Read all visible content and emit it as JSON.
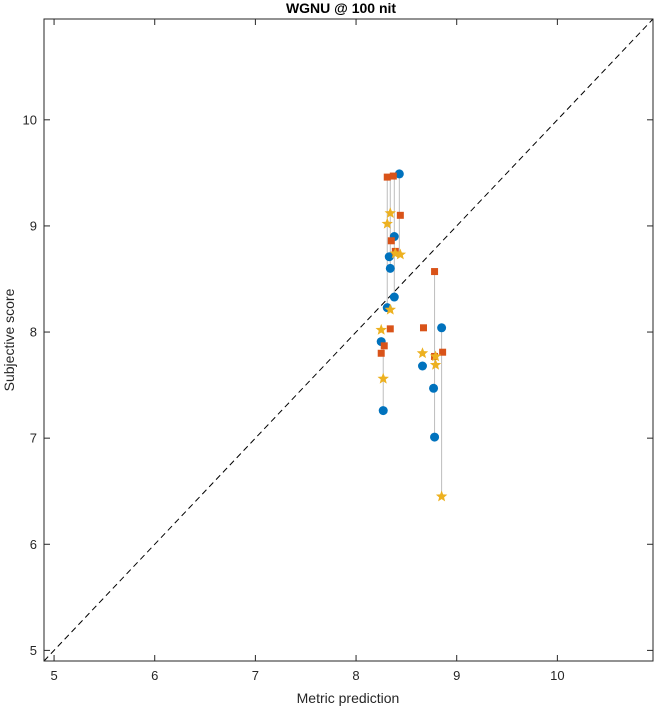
{
  "chart_data": {
    "type": "scatter",
    "title": "WGNU @ 100 nit",
    "xlabel": "Metric prediction",
    "ylabel": "Subjective score",
    "xlim": [
      4.9,
      10.95
    ],
    "ylim": [
      4.9,
      10.95
    ],
    "xticks": [
      5,
      6,
      7,
      8,
      9,
      10
    ],
    "yticks": [
      5,
      6,
      7,
      8,
      9,
      10
    ],
    "grid": false,
    "legend": "none",
    "reference_line": {
      "style": "dashed",
      "color": "#000000",
      "from": [
        4.9,
        4.9
      ],
      "to": [
        10.95,
        10.95
      ]
    },
    "colors": {
      "blue": "#0072BD",
      "orange": "#D95319",
      "yellow": "#EDB120",
      "stem": "#BDBDBD",
      "axis": "#262626"
    },
    "stems": [
      {
        "x": 8.27,
        "y0": 7.26,
        "y1": 7.87
      },
      {
        "x": 8.31,
        "y0": 8.23,
        "y1": 9.46
      },
      {
        "x": 8.34,
        "y0": 8.6,
        "y1": 9.46
      },
      {
        "x": 8.38,
        "y0": 8.33,
        "y1": 9.47
      },
      {
        "x": 8.43,
        "y0": 8.73,
        "y1": 9.49
      },
      {
        "x": 8.78,
        "y0": 7.01,
        "y1": 8.57
      },
      {
        "x": 8.85,
        "y0": 6.45,
        "y1": 8.04
      }
    ],
    "series": [
      {
        "marker": "circle",
        "color": "#0072BD",
        "points": [
          [
            8.27,
            7.26
          ],
          [
            8.25,
            7.91
          ],
          [
            8.31,
            8.23
          ],
          [
            8.38,
            8.33
          ],
          [
            8.34,
            8.6
          ],
          [
            8.33,
            8.71
          ],
          [
            8.38,
            8.9
          ],
          [
            8.43,
            9.49
          ],
          [
            8.66,
            7.68
          ],
          [
            8.77,
            7.47
          ],
          [
            8.78,
            7.01
          ],
          [
            8.85,
            8.04
          ]
        ]
      },
      {
        "marker": "square",
        "color": "#D95319",
        "points": [
          [
            8.25,
            7.8
          ],
          [
            8.28,
            7.87
          ],
          [
            8.34,
            8.03
          ],
          [
            8.35,
            8.86
          ],
          [
            8.39,
            8.76
          ],
          [
            8.44,
            9.1
          ],
          [
            8.31,
            9.46
          ],
          [
            8.37,
            9.47
          ],
          [
            8.67,
            8.04
          ],
          [
            8.78,
            8.57
          ],
          [
            8.78,
            7.77
          ],
          [
            8.86,
            7.81
          ]
        ]
      },
      {
        "marker": "star",
        "color": "#EDB120",
        "points": [
          [
            8.27,
            7.56
          ],
          [
            8.25,
            8.02
          ],
          [
            8.34,
            8.21
          ],
          [
            8.31,
            9.02
          ],
          [
            8.34,
            9.12
          ],
          [
            8.39,
            8.74
          ],
          [
            8.44,
            8.73
          ],
          [
            8.66,
            7.8
          ],
          [
            8.79,
            7.77
          ],
          [
            8.79,
            7.69
          ],
          [
            8.85,
            6.45
          ]
        ]
      }
    ]
  }
}
